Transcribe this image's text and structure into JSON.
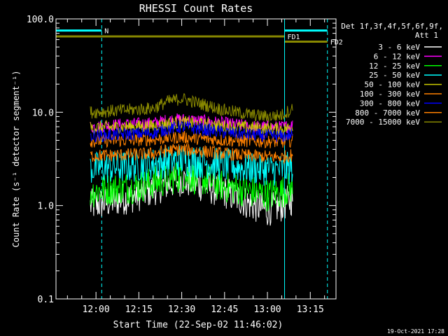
{
  "chart_data": {
    "type": "line",
    "title": "RHESSI Count Rates",
    "xlabel": "Start Time (22-Sep-02 11:46:02)",
    "ylabel": "Count Rate (s⁻¹ detector segment⁻¹)",
    "ylim": [
      0.1,
      100.0
    ],
    "y_scale": "log",
    "grid": false,
    "xlim": [
      "11:46",
      "13:24"
    ],
    "x_ticks": [
      "12:00",
      "12:15",
      "12:30",
      "12:45",
      "13:00",
      "13:15"
    ],
    "y_ticks": [
      "0.1",
      "1.0",
      "10.0",
      "100.0"
    ],
    "legend_position": "right",
    "legend_header": [
      "Det 1f,3f,4f,5f,6f,9f,",
      "Att 1"
    ],
    "date_stamp": "19-Oct-2021 17:28",
    "series": [
      {
        "name": "3 - 6 keV",
        "color": "#ffffff",
        "points": [
          [
            "11:58",
            1.0
          ],
          [
            "12:05",
            1.1
          ],
          [
            "12:15",
            1.3
          ],
          [
            "12:25",
            1.7
          ],
          [
            "12:30",
            1.9
          ],
          [
            "12:38",
            1.6
          ],
          [
            "12:45",
            1.4
          ],
          [
            "12:55",
            1.0
          ],
          [
            "13:00",
            0.9
          ],
          [
            "13:05",
            1.0
          ],
          [
            "13:09",
            1.2
          ]
        ]
      },
      {
        "name": "6 - 12 keV",
        "color": "#ff00ff",
        "points": [
          [
            "11:58",
            7.0
          ],
          [
            "12:10",
            7.4
          ],
          [
            "12:20",
            7.6
          ],
          [
            "12:25",
            8.2
          ],
          [
            "12:30",
            8.4
          ],
          [
            "12:38",
            8.0
          ],
          [
            "12:45",
            7.6
          ],
          [
            "12:55",
            7.0
          ],
          [
            "13:05",
            6.9
          ],
          [
            "13:09",
            7.3
          ]
        ]
      },
      {
        "name": "12 - 25 keV",
        "color": "#00ff00",
        "points": [
          [
            "11:58",
            1.4
          ],
          [
            "12:05",
            1.5
          ],
          [
            "12:15",
            1.6
          ],
          [
            "12:25",
            1.9
          ],
          [
            "12:30",
            2.1
          ],
          [
            "12:38",
            1.9
          ],
          [
            "12:45",
            1.6
          ],
          [
            "12:55",
            1.4
          ],
          [
            "13:00",
            1.3
          ],
          [
            "13:05",
            1.4
          ],
          [
            "13:09",
            1.6
          ]
        ]
      },
      {
        "name": "25 - 50 keV",
        "color": "#00ffff",
        "points": [
          [
            "11:58",
            2.5
          ],
          [
            "12:10",
            2.6
          ],
          [
            "12:20",
            2.8
          ],
          [
            "12:25",
            3.0
          ],
          [
            "12:30",
            3.1
          ],
          [
            "12:38",
            2.9
          ],
          [
            "12:45",
            2.7
          ],
          [
            "12:55",
            2.5
          ],
          [
            "13:05",
            2.4
          ],
          [
            "13:09",
            2.6
          ]
        ]
      },
      {
        "name": "50 - 100 keV",
        "color": "#cccc00",
        "points": [
          [
            "11:58",
            6.8
          ],
          [
            "12:10",
            7.0
          ],
          [
            "12:20",
            7.1
          ],
          [
            "12:25",
            7.6
          ],
          [
            "12:30",
            7.8
          ],
          [
            "12:38",
            7.4
          ],
          [
            "12:45",
            7.1
          ],
          [
            "12:55",
            6.8
          ],
          [
            "13:05",
            6.6
          ],
          [
            "13:09",
            6.9
          ]
        ]
      },
      {
        "name": "100 - 300 keV",
        "color": "#ff8000",
        "points": [
          [
            "11:58",
            4.9
          ],
          [
            "12:10",
            5.0
          ],
          [
            "12:20",
            5.1
          ],
          [
            "12:25",
            5.3
          ],
          [
            "12:30",
            5.4
          ],
          [
            "12:38",
            5.2
          ],
          [
            "12:45",
            5.0
          ],
          [
            "12:55",
            4.9
          ],
          [
            "13:05",
            4.8
          ],
          [
            "13:09",
            5.0
          ]
        ]
      },
      {
        "name": "300 - 800 keV",
        "color": "#0000ff",
        "points": [
          [
            "11:58",
            5.6
          ],
          [
            "12:10",
            5.8
          ],
          [
            "12:20",
            6.0
          ],
          [
            "12:25",
            6.6
          ],
          [
            "12:30",
            7.0
          ],
          [
            "12:38",
            6.5
          ],
          [
            "12:45",
            6.1
          ],
          [
            "12:55",
            5.7
          ],
          [
            "13:05",
            5.5
          ],
          [
            "13:09",
            5.8
          ]
        ]
      },
      {
        "name": "800 - 7000 keV",
        "color": "#ff8000",
        "points": [
          [
            "11:58",
            3.4
          ],
          [
            "12:10",
            3.5
          ],
          [
            "12:20",
            3.6
          ],
          [
            "12:25",
            3.9
          ],
          [
            "12:30",
            4.0
          ],
          [
            "12:38",
            3.8
          ],
          [
            "12:45",
            3.6
          ],
          [
            "12:55",
            3.4
          ],
          [
            "13:05",
            3.3
          ],
          [
            "13:09",
            3.5
          ]
        ]
      },
      {
        "name": "7000 - 15000 keV",
        "color": "#888800",
        "points": [
          [
            "11:58",
            10.0
          ],
          [
            "12:10",
            10.5
          ],
          [
            "12:20",
            11.0
          ],
          [
            "12:25",
            13.0
          ],
          [
            "12:30",
            14.0
          ],
          [
            "12:38",
            12.0
          ],
          [
            "12:45",
            10.5
          ],
          [
            "12:55",
            9.3
          ],
          [
            "13:00",
            9.0
          ],
          [
            "13:05",
            9.3
          ],
          [
            "13:09",
            11.0
          ]
        ]
      }
    ],
    "annotations": [
      {
        "type": "bar",
        "label": "N",
        "color": "#00ffff",
        "value": 75,
        "x_start": "11:46",
        "x_end": "12:02"
      },
      {
        "type": "bar",
        "label": "",
        "color": "#00ffff",
        "value": 75,
        "x_start": "13:06",
        "x_end": "13:21"
      },
      {
        "type": "bar",
        "label": "FD1",
        "color": "#888800",
        "value": 65,
        "x_start": "11:46",
        "x_end": "13:06"
      },
      {
        "type": "bar",
        "label": "FD2",
        "color": "#888800",
        "value": 57,
        "x_start": "13:06",
        "x_end": "13:21"
      },
      {
        "type": "vline",
        "style": "solid",
        "color": "#00ffff",
        "x": "11:46"
      },
      {
        "type": "vline",
        "style": "dashed",
        "color": "#00ffff",
        "x": "12:02"
      },
      {
        "type": "vline",
        "style": "solid",
        "color": "#00ffff",
        "x": "13:06"
      },
      {
        "type": "vline",
        "style": "dashed",
        "color": "#00ffff",
        "x": "13:21"
      }
    ]
  }
}
